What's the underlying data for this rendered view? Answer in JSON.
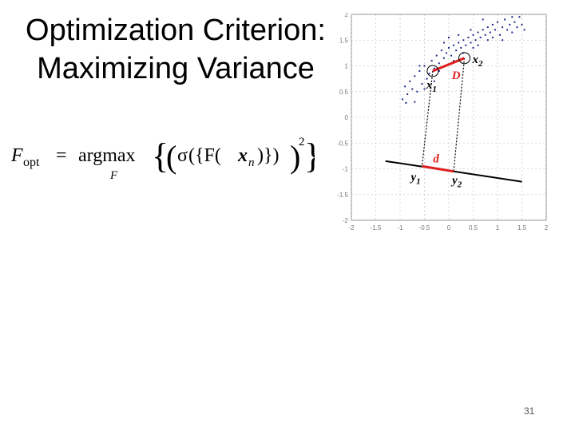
{
  "slide": {
    "title_line1": "Optimization Criterion:",
    "title_line2": "Maximizing Variance",
    "page_number": "31"
  },
  "formula": {
    "lhs": "F",
    "lhs_sub": "opt",
    "equals": "=",
    "op": "argmax",
    "op_sub": "F",
    "sigma": "σ",
    "inner": "({F(",
    "var": "x",
    "var_sub": "n",
    "close": ")})",
    "exponent": "2"
  },
  "figure": {
    "labels": {
      "x1": "x",
      "x1_sub": "1",
      "x2": "x",
      "x2_sub": "2",
      "y1": "y",
      "y1_sub": "1",
      "y2": "y",
      "y2_sub": "2",
      "D": "D",
      "d": "d"
    },
    "colors": {
      "points": "#1a2a8a",
      "highlight": "#e02020",
      "axis": "#000000"
    }
  },
  "chart_data": {
    "type": "scatter",
    "xlim": [
      -2,
      2
    ],
    "ylim": [
      -2,
      2
    ],
    "x_ticks": [
      "-2",
      "-1.5",
      "-1",
      "-0.5",
      "0",
      "0.5",
      "1",
      "1.5",
      "2"
    ],
    "y_ticks": [
      "2",
      "1.5",
      "1",
      "0.5",
      "0",
      "-0.5",
      "-1",
      "-1.5",
      "-2"
    ],
    "grid": true,
    "points": [
      [
        -0.9,
        0.6
      ],
      [
        -0.85,
        0.45
      ],
      [
        -0.8,
        0.7
      ],
      [
        -0.75,
        0.55
      ],
      [
        -0.7,
        0.8
      ],
      [
        -0.65,
        0.5
      ],
      [
        -0.6,
        0.9
      ],
      [
        -0.55,
        0.65
      ],
      [
        -0.5,
        1.0
      ],
      [
        -0.45,
        0.75
      ],
      [
        -0.4,
        0.85
      ],
      [
        -0.35,
        1.1
      ],
      [
        -0.3,
        0.95
      ],
      [
        -0.25,
        1.2
      ],
      [
        -0.2,
        1.05
      ],
      [
        -0.15,
        1.3
      ],
      [
        -0.1,
        1.15
      ],
      [
        -0.05,
        1.25
      ],
      [
        0.0,
        1.35
      ],
      [
        0.05,
        1.2
      ],
      [
        0.1,
        1.4
      ],
      [
        0.15,
        1.3
      ],
      [
        0.2,
        1.45
      ],
      [
        0.25,
        1.35
      ],
      [
        0.3,
        1.5
      ],
      [
        0.35,
        1.4
      ],
      [
        0.4,
        1.55
      ],
      [
        0.45,
        1.45
      ],
      [
        0.5,
        1.6
      ],
      [
        0.55,
        1.5
      ],
      [
        0.6,
        1.65
      ],
      [
        0.65,
        1.55
      ],
      [
        0.7,
        1.7
      ],
      [
        0.75,
        1.6
      ],
      [
        0.8,
        1.75
      ],
      [
        0.85,
        1.65
      ],
      [
        0.9,
        1.8
      ],
      [
        0.95,
        1.7
      ],
      [
        1.0,
        1.85
      ],
      [
        1.05,
        1.6
      ],
      [
        1.1,
        1.75
      ],
      [
        1.15,
        1.9
      ],
      [
        1.2,
        1.7
      ],
      [
        1.25,
        1.8
      ],
      [
        1.3,
        1.65
      ],
      [
        1.35,
        1.85
      ],
      [
        1.4,
        1.75
      ],
      [
        1.45,
        1.95
      ],
      [
        1.5,
        1.8
      ],
      [
        -0.95,
        0.35
      ],
      [
        -0.88,
        0.28
      ],
      [
        -0.7,
        0.3
      ],
      [
        -0.5,
        0.55
      ],
      [
        -0.3,
        0.7
      ],
      [
        0.1,
        1.1
      ],
      [
        0.3,
        1.25
      ],
      [
        0.5,
        1.35
      ],
      [
        0.2,
        1.6
      ],
      [
        0.45,
        1.7
      ],
      [
        0.7,
        1.9
      ],
      [
        -0.1,
        1.45
      ],
      [
        0.9,
        1.55
      ],
      [
        1.1,
        1.5
      ],
      [
        1.3,
        1.95
      ],
      [
        1.55,
        1.7
      ],
      [
        -0.6,
        1.0
      ],
      [
        -0.2,
        0.9
      ],
      [
        0.0,
        1.55
      ],
      [
        0.6,
        1.4
      ],
      [
        0.8,
        1.5
      ]
    ],
    "highlighted": {
      "x1": [
        -0.33,
        0.9
      ],
      "x2": [
        0.32,
        1.15
      ],
      "y1": [
        -0.55,
        -0.95
      ],
      "y2": [
        0.1,
        -1.05
      ]
    },
    "projection_line": {
      "from": [
        -1.3,
        -0.85
      ],
      "to": [
        1.5,
        -1.25
      ]
    }
  }
}
